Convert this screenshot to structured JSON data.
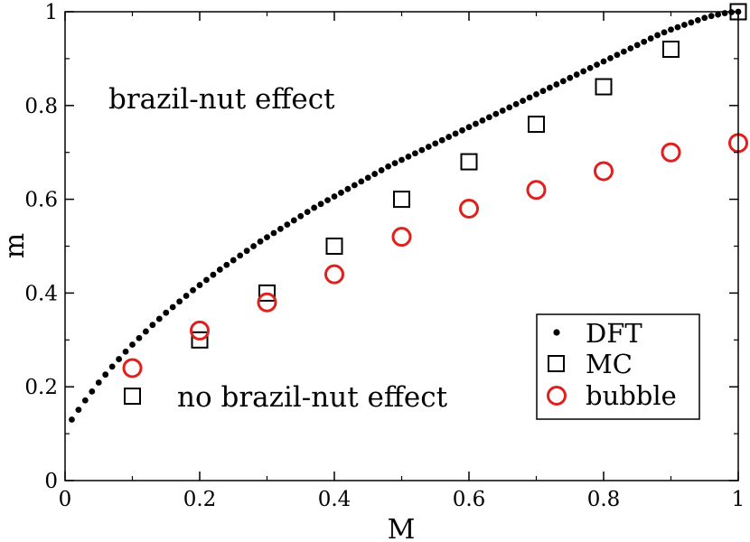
{
  "chart_data": {
    "type": "scatter",
    "title": "",
    "xlabel": "M",
    "ylabel": "m",
    "xlim": [
      0,
      1
    ],
    "ylim": [
      0,
      1
    ],
    "x_ticks": [
      "0",
      "0.2",
      "0.4",
      "0.6",
      "0.8",
      "1"
    ],
    "y_ticks": [
      "0",
      "0.2",
      "0.4",
      "0.6",
      "0.8",
      "1"
    ],
    "x_tick_values": [
      0,
      0.2,
      0.4,
      0.6,
      0.8,
      1
    ],
    "y_tick_values": [
      0,
      0.2,
      0.4,
      0.6,
      0.8,
      1
    ],
    "grid": false,
    "legend_position": "bottom-right",
    "annotations": [
      {
        "text": "brazil-nut effect",
        "x": 0.07,
        "y": 0.81
      },
      {
        "text": "no brazil-nut effect",
        "x": 0.17,
        "y": 0.17
      }
    ],
    "series": [
      {
        "name": "DFT",
        "marker": "dot",
        "color": "#000000",
        "x": [
          0.01,
          0.02,
          0.03,
          0.04,
          0.05,
          0.06,
          0.07,
          0.08,
          0.09,
          0.1,
          0.11,
          0.12,
          0.13,
          0.14,
          0.15,
          0.16,
          0.17,
          0.18,
          0.19,
          0.2,
          0.21,
          0.22,
          0.23,
          0.24,
          0.25,
          0.26,
          0.27,
          0.28,
          0.29,
          0.3,
          0.31,
          0.32,
          0.33,
          0.34,
          0.35,
          0.36,
          0.37,
          0.38,
          0.39,
          0.4,
          0.41,
          0.42,
          0.43,
          0.44,
          0.45,
          0.46,
          0.47,
          0.48,
          0.49,
          0.5,
          0.51,
          0.52,
          0.53,
          0.54,
          0.55,
          0.56,
          0.57,
          0.58,
          0.59,
          0.6,
          0.61,
          0.62,
          0.63,
          0.64,
          0.65,
          0.66,
          0.67,
          0.68,
          0.69,
          0.7,
          0.71,
          0.72,
          0.73,
          0.74,
          0.75,
          0.76,
          0.77,
          0.78,
          0.79,
          0.8,
          0.81,
          0.82,
          0.83,
          0.84,
          0.85,
          0.86,
          0.87,
          0.88,
          0.89,
          0.9,
          0.91,
          0.92,
          0.93,
          0.94,
          0.95,
          0.96,
          0.97,
          0.98,
          0.99,
          1.0
        ],
        "values": [
          0.13,
          0.151,
          0.171,
          0.19,
          0.209,
          0.226,
          0.243,
          0.259,
          0.275,
          0.29,
          0.304,
          0.318,
          0.332,
          0.345,
          0.358,
          0.37,
          0.382,
          0.394,
          0.406,
          0.417,
          0.428,
          0.439,
          0.45,
          0.46,
          0.47,
          0.48,
          0.49,
          0.5,
          0.51,
          0.519,
          0.528,
          0.537,
          0.546,
          0.555,
          0.564,
          0.573,
          0.582,
          0.59,
          0.598,
          0.606,
          0.614,
          0.622,
          0.63,
          0.638,
          0.646,
          0.654,
          0.662,
          0.67,
          0.677,
          0.684,
          0.691,
          0.698,
          0.705,
          0.712,
          0.719,
          0.726,
          0.733,
          0.74,
          0.747,
          0.754,
          0.761,
          0.768,
          0.775,
          0.782,
          0.789,
          0.796,
          0.803,
          0.81,
          0.817,
          0.824,
          0.831,
          0.838,
          0.845,
          0.852,
          0.859,
          0.866,
          0.873,
          0.88,
          0.887,
          0.894,
          0.901,
          0.908,
          0.915,
          0.922,
          0.929,
          0.936,
          0.943,
          0.95,
          0.956,
          0.962,
          0.967,
          0.972,
          0.977,
          0.982,
          0.987,
          0.991,
          0.994,
          0.997,
          0.999,
          1.0
        ]
      },
      {
        "name": "MC",
        "marker": "square",
        "color": "#000000",
        "x": [
          0.1,
          0.2,
          0.3,
          0.4,
          0.5,
          0.6,
          0.7,
          0.8,
          0.9,
          1.0
        ],
        "values": [
          0.18,
          0.3,
          0.4,
          0.5,
          0.6,
          0.68,
          0.76,
          0.84,
          0.92,
          1.0
        ]
      },
      {
        "name": "bubble",
        "marker": "circle",
        "color": "#e0201c",
        "x": [
          0.1,
          0.2,
          0.3,
          0.4,
          0.5,
          0.6,
          0.7,
          0.8,
          0.9,
          1.0
        ],
        "values": [
          0.24,
          0.32,
          0.38,
          0.44,
          0.52,
          0.58,
          0.62,
          0.66,
          0.7,
          0.72
        ]
      }
    ]
  }
}
